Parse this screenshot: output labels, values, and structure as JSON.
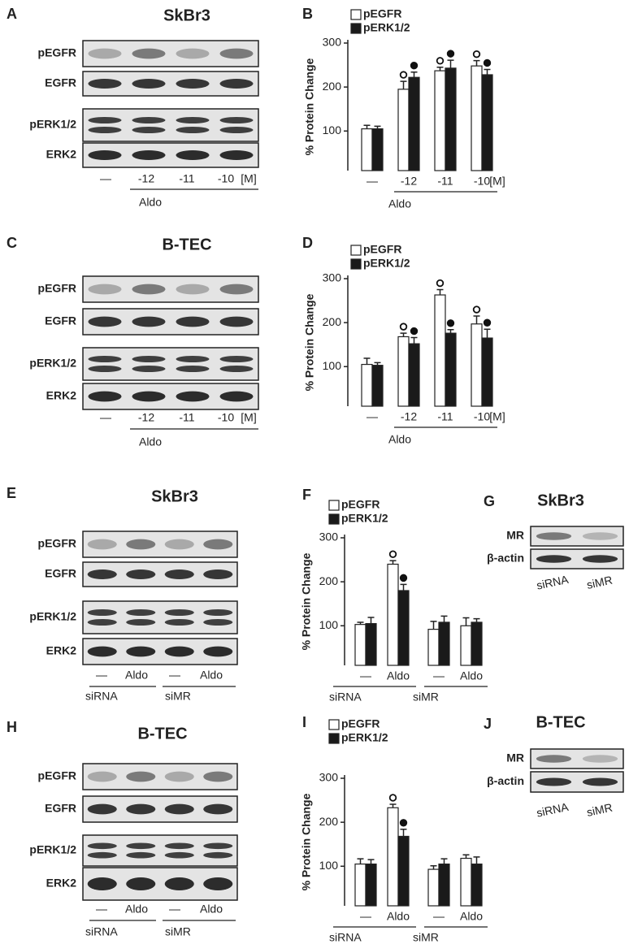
{
  "blots": [
    {
      "label": "A",
      "title": "SkBr3",
      "rows": [
        "pEGFR",
        "EGFR",
        "pERK1/2",
        "ERK2"
      ],
      "lanes": [
        "—",
        "-12",
        "-11",
        "-10"
      ],
      "unit": "[M]",
      "treatment": "Aldo"
    },
    {
      "label": "C",
      "title": "B-TEC",
      "rows": [
        "pEGFR",
        "EGFR",
        "pERK1/2",
        "ERK2"
      ],
      "lanes": [
        "—",
        "-12",
        "-11",
        "-10"
      ],
      "unit": "[M]",
      "treatment": "Aldo"
    },
    {
      "label": "E",
      "title": "SkBr3",
      "rows": [
        "pEGFR",
        "EGFR",
        "pERK1/2",
        "ERK2"
      ],
      "lanes": [
        "—",
        "Aldo",
        "—",
        "Aldo"
      ],
      "groups": [
        "siRNA",
        "siMR"
      ]
    },
    {
      "label": "G",
      "title": "SkBr3",
      "rows": [
        "MR",
        "β-actin"
      ],
      "lanes": [
        "siRNA",
        "siMR"
      ]
    },
    {
      "label": "H",
      "title": "B-TEC",
      "rows": [
        "pEGFR",
        "EGFR",
        "pERK1/2",
        "ERK2"
      ],
      "lanes": [
        "—",
        "Aldo",
        "—",
        "Aldo"
      ],
      "groups": [
        "siRNA",
        "siMR"
      ]
    },
    {
      "label": "J",
      "title": "B-TEC",
      "rows": [
        "MR",
        "β-actin"
      ],
      "lanes": [
        "siRNA",
        "siMR"
      ]
    }
  ],
  "chart_data": [
    {
      "type": "bar",
      "panel_label": "B",
      "ylabel": "% Protein Change",
      "categories": [
        "—",
        "-12",
        "-11",
        "-10"
      ],
      "unit": "[M]",
      "treatment": "Aldo",
      "series": [
        {
          "name": "pEGFR",
          "color": "#ffffff",
          "values": [
            105,
            195,
            237,
            248
          ],
          "errors": [
            8,
            18,
            8,
            12
          ],
          "significant": [
            false,
            true,
            true,
            true
          ]
        },
        {
          "name": "pERK1/2",
          "color": "#1a1a1a",
          "values": [
            105,
            222,
            243,
            228
          ],
          "errors": [
            6,
            12,
            18,
            12
          ],
          "significant": [
            false,
            true,
            true,
            true
          ]
        }
      ],
      "ylim": [
        10,
        300
      ],
      "yticks": [
        100,
        200,
        300
      ]
    },
    {
      "type": "bar",
      "panel_label": "D",
      "ylabel": "% Protein Change",
      "categories": [
        "—",
        "-12",
        "-11",
        "-10"
      ],
      "unit": "[M]",
      "treatment": "Aldo",
      "series": [
        {
          "name": "pEGFR",
          "color": "#ffffff",
          "values": [
            105,
            168,
            263,
            197
          ],
          "errors": [
            14,
            8,
            12,
            18
          ],
          "significant": [
            false,
            true,
            true,
            true
          ]
        },
        {
          "name": "pERK1/2",
          "color": "#1a1a1a",
          "values": [
            103,
            152,
            176,
            165
          ],
          "errors": [
            6,
            14,
            8,
            20
          ],
          "significant": [
            false,
            true,
            true,
            true
          ]
        }
      ],
      "ylim": [
        10,
        300
      ],
      "yticks": [
        100,
        200,
        300
      ]
    },
    {
      "type": "bar",
      "panel_label": "F",
      "ylabel": "% Protein Change",
      "categories": [
        "—",
        "Aldo",
        "—",
        "Aldo"
      ],
      "groups": [
        "siRNA",
        "siMR"
      ],
      "series": [
        {
          "name": "pEGFR",
          "color": "#ffffff",
          "values": [
            103,
            240,
            92,
            100
          ],
          "errors": [
            5,
            8,
            18,
            18
          ],
          "significant": [
            false,
            true,
            false,
            false
          ]
        },
        {
          "name": "pERK1/2",
          "color": "#1a1a1a",
          "values": [
            105,
            180,
            108,
            108
          ],
          "errors": [
            14,
            14,
            14,
            8
          ],
          "significant": [
            false,
            true,
            false,
            false
          ]
        }
      ],
      "ylim": [
        10,
        300
      ],
      "yticks": [
        100,
        200,
        300
      ]
    },
    {
      "type": "bar",
      "panel_label": "I",
      "ylabel": "% Protein Change",
      "categories": [
        "—",
        "Aldo",
        "—",
        "Aldo"
      ],
      "groups": [
        "siRNA",
        "siMR"
      ],
      "series": [
        {
          "name": "pEGFR",
          "color": "#ffffff",
          "values": [
            105,
            233,
            93,
            118
          ],
          "errors": [
            12,
            8,
            8,
            8
          ],
          "significant": [
            false,
            true,
            false,
            false
          ]
        },
        {
          "name": "pERK1/2",
          "color": "#1a1a1a",
          "values": [
            105,
            168,
            105,
            105
          ],
          "errors": [
            10,
            16,
            12,
            16
          ],
          "significant": [
            false,
            true,
            false,
            false
          ]
        }
      ],
      "ylim": [
        10,
        300
      ],
      "yticks": [
        100,
        200,
        300
      ]
    }
  ]
}
